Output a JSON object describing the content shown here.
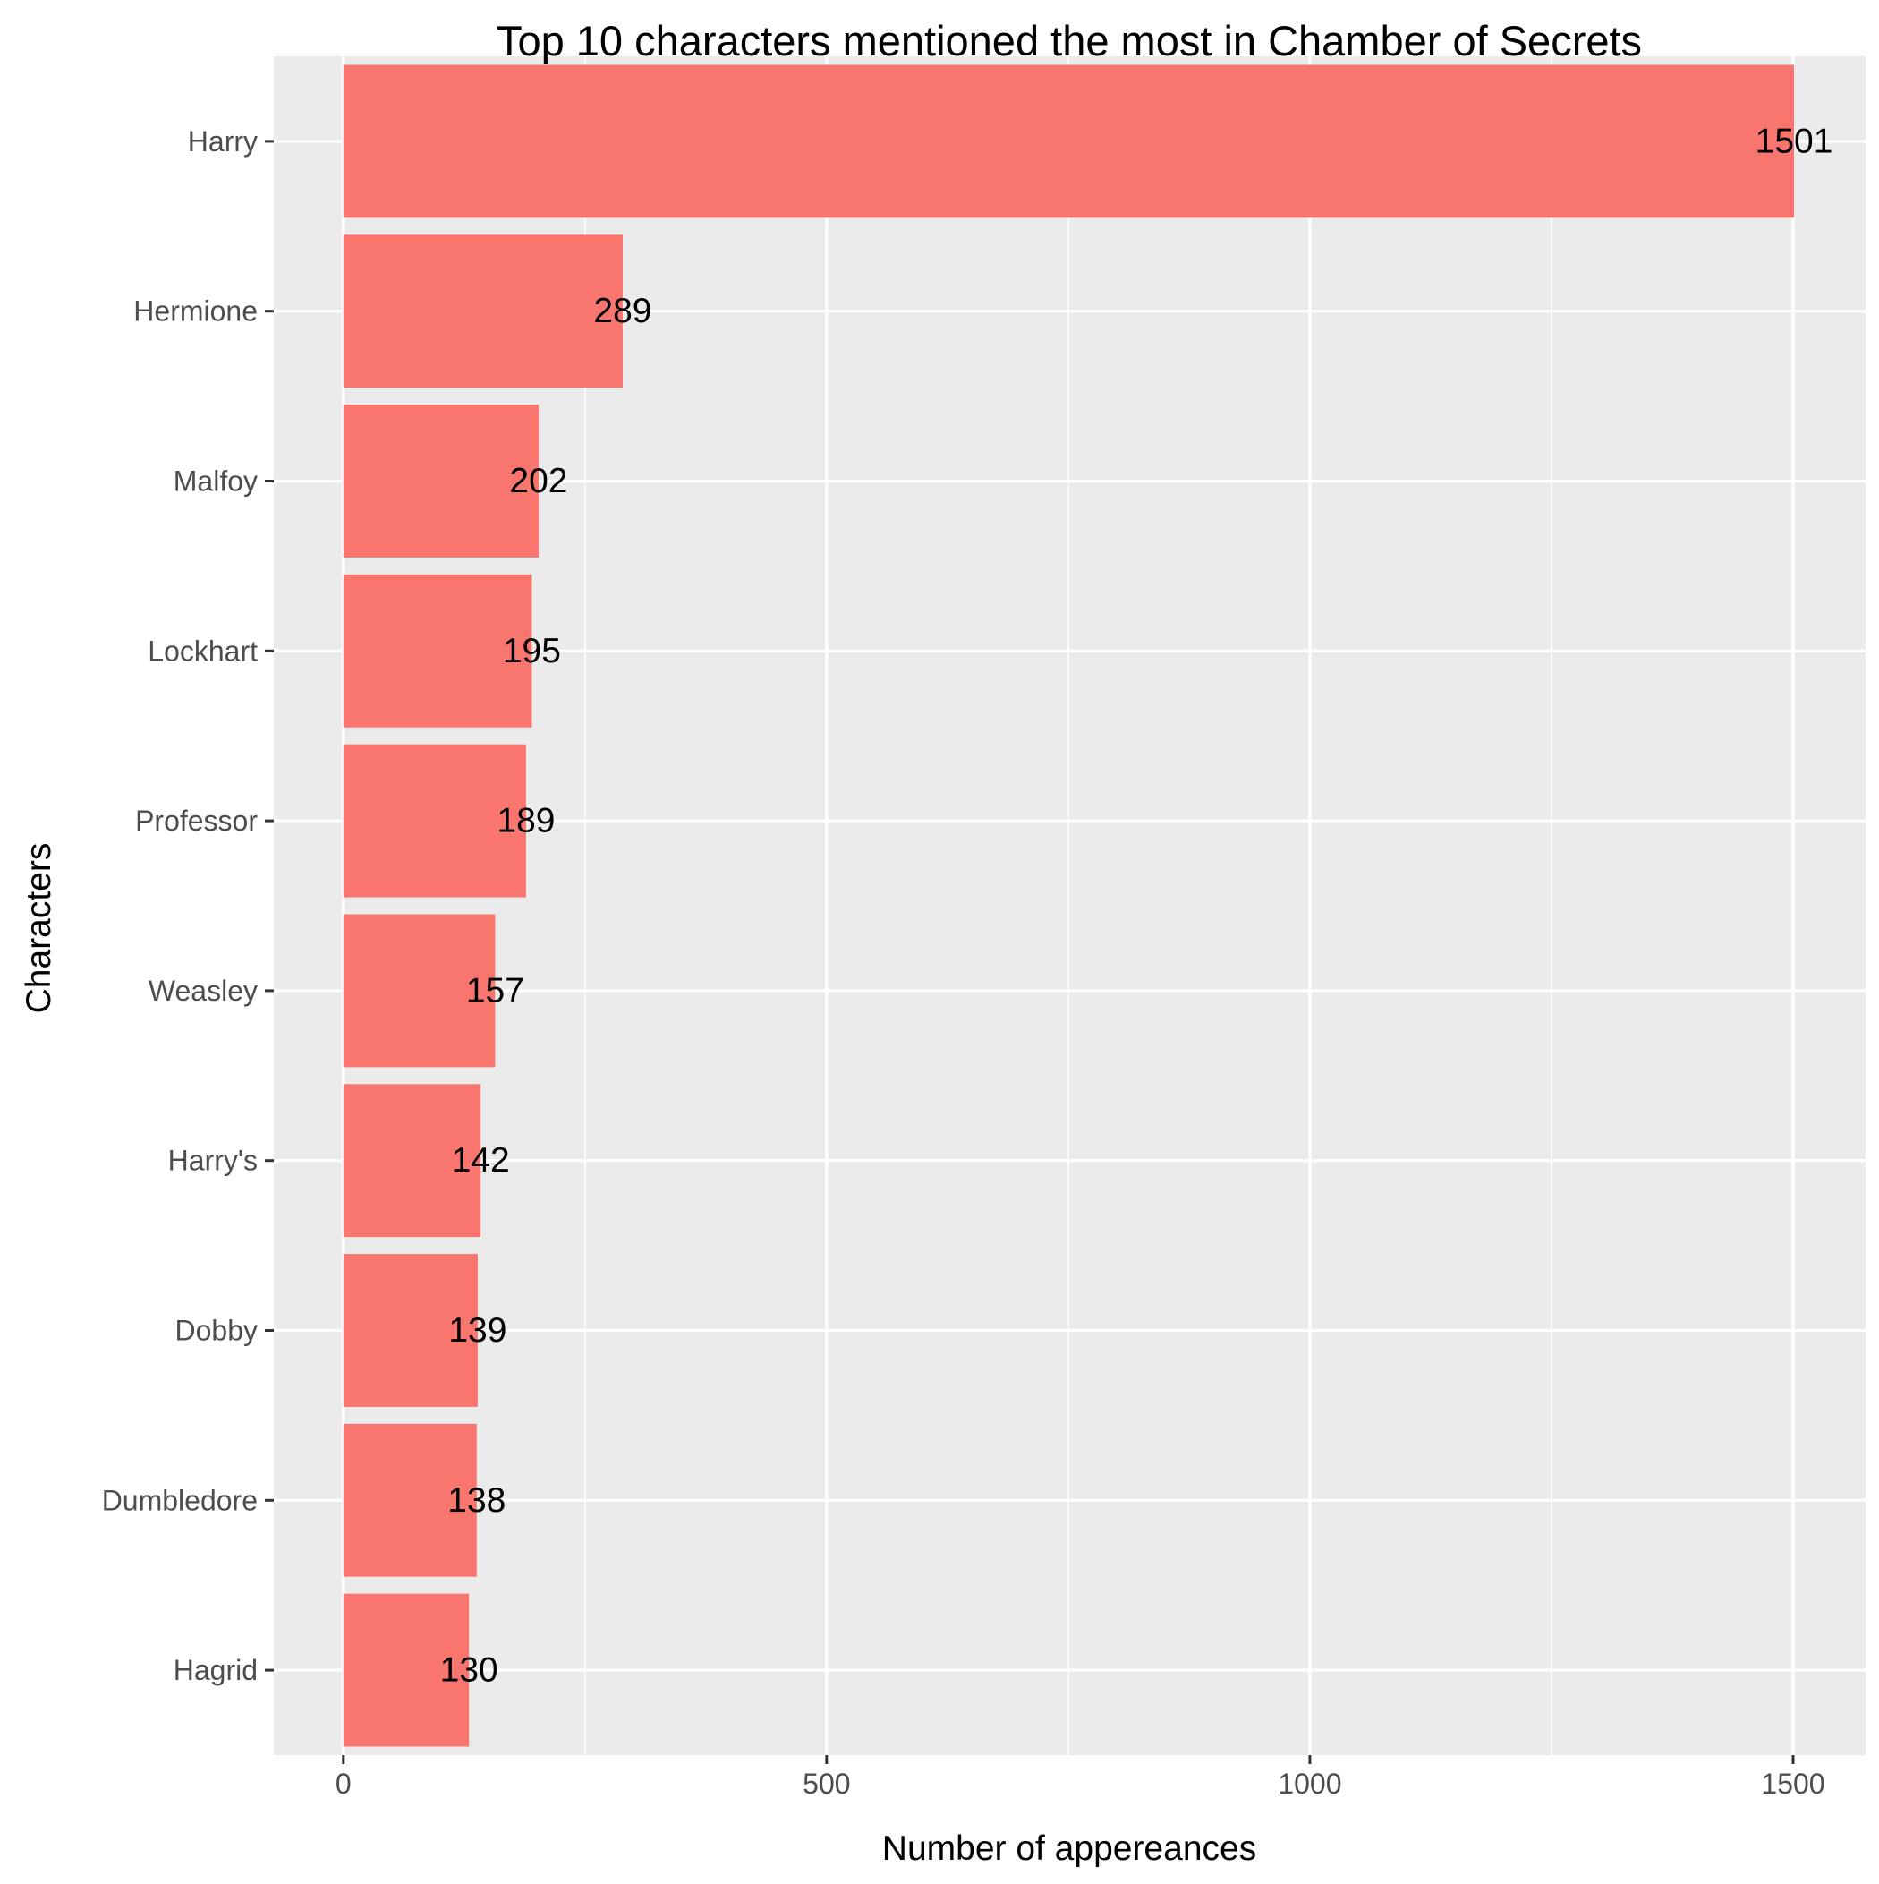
{
  "chart_data": {
    "type": "bar",
    "orientation": "horizontal",
    "title": "Top 10 characters mentioned the most in Chamber of Secrets",
    "xlabel": "Number of appereances",
    "ylabel": "Characters",
    "categories": [
      "Harry",
      "Hermione",
      "Malfoy",
      "Lockhart",
      "Professor",
      "Weasley",
      "Harry's",
      "Dobby",
      "Dumbledore",
      "Hagrid"
    ],
    "values": [
      1501,
      289,
      202,
      195,
      189,
      157,
      142,
      139,
      138,
      130
    ],
    "data_labels": [
      "1501",
      "289",
      "202",
      "195",
      "189",
      "157",
      "142",
      "139",
      "138",
      "130"
    ],
    "xlim": [
      -72,
      1575
    ],
    "x_ticks": [
      0,
      500,
      1000,
      1500
    ],
    "x_tick_labels": [
      "0",
      "500",
      "1000",
      "1500"
    ],
    "x_minor_ticks": [
      250,
      750,
      1250
    ],
    "grid": true,
    "legend": "none",
    "colors": {
      "bar": "#F8766D",
      "panel": "#EBEBEB",
      "grid": "#FFFFFF",
      "tick_text": "#4D4D4D",
      "text": "#000000"
    }
  }
}
